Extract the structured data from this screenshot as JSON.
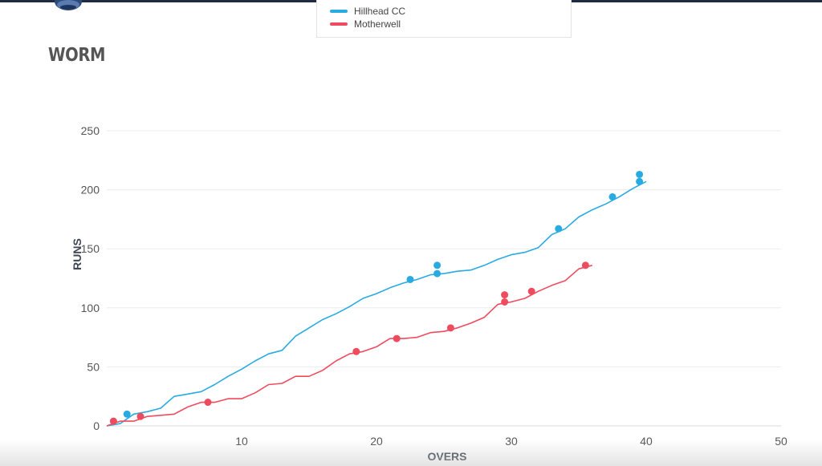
{
  "page": {
    "title": "WORM"
  },
  "legend": {
    "items": [
      {
        "label": "Hillhead CC",
        "color": "#29abe2"
      },
      {
        "label": "Motherwell",
        "color": "#ef4b5e"
      }
    ]
  },
  "chart_data": {
    "type": "line",
    "title": "",
    "xlabel": "OVERS",
    "ylabel": "RUNS",
    "xlim": [
      0,
      50
    ],
    "ylim": [
      0,
      250
    ],
    "xticks": [
      10,
      20,
      30,
      40,
      50
    ],
    "yticks": [
      0,
      50,
      100,
      150,
      200,
      250
    ],
    "grid": true,
    "legend_position": "top",
    "series": [
      {
        "name": "Hillhead CC",
        "color": "#29abe2",
        "x": [
          0,
          1,
          2,
          3,
          4,
          5,
          6,
          7,
          8,
          9,
          10,
          11,
          12,
          13,
          14,
          15,
          16,
          17,
          18,
          19,
          20,
          21,
          22,
          23,
          24,
          25,
          26,
          27,
          28,
          29,
          30,
          31,
          32,
          33,
          34,
          35,
          36,
          37,
          38,
          39,
          40
        ],
        "y": [
          0,
          2,
          10,
          12,
          15,
          25,
          27,
          29,
          35,
          42,
          48,
          55,
          61,
          64,
          76,
          83,
          90,
          95,
          101,
          108,
          112,
          117,
          121,
          124,
          128,
          129,
          131,
          132,
          136,
          141,
          145,
          147,
          151,
          162,
          167,
          177,
          183,
          188,
          194,
          201,
          207
        ],
        "wickets": [
          {
            "over": 2,
            "runs": 10
          },
          {
            "over": 23,
            "runs": 124
          },
          {
            "over": 25,
            "runs": 129
          },
          {
            "over": 25,
            "runs": 136
          },
          {
            "over": 34,
            "runs": 167
          },
          {
            "over": 38,
            "runs": 194
          },
          {
            "over": 40,
            "runs": 207
          },
          {
            "over": 40,
            "runs": 213
          }
        ]
      },
      {
        "name": "Motherwell",
        "color": "#ef4b5e",
        "x": [
          0,
          1,
          2,
          3,
          4,
          5,
          6,
          7,
          8,
          9,
          10,
          11,
          12,
          13,
          14,
          15,
          16,
          17,
          18,
          19,
          20,
          21,
          22,
          23,
          24,
          25,
          26,
          27,
          28,
          29,
          30,
          31,
          32,
          33,
          34,
          35,
          36
        ],
        "y": [
          0,
          4,
          4,
          8,
          9,
          10,
          16,
          20,
          20,
          23,
          23,
          28,
          35,
          36,
          42,
          42,
          47,
          55,
          61,
          63,
          67,
          74,
          74,
          75,
          79,
          80,
          83,
          87,
          92,
          103,
          105,
          108,
          114,
          119,
          123,
          133,
          136
        ],
        "wickets": [
          {
            "over": 1,
            "runs": 4
          },
          {
            "over": 3,
            "runs": 8
          },
          {
            "over": 8,
            "runs": 20
          },
          {
            "over": 19,
            "runs": 63
          },
          {
            "over": 22,
            "runs": 74
          },
          {
            "over": 26,
            "runs": 83
          },
          {
            "over": 30,
            "runs": 105
          },
          {
            "over": 30,
            "runs": 111
          },
          {
            "over": 32,
            "runs": 114
          },
          {
            "over": 36,
            "runs": 136
          }
        ]
      }
    ]
  }
}
